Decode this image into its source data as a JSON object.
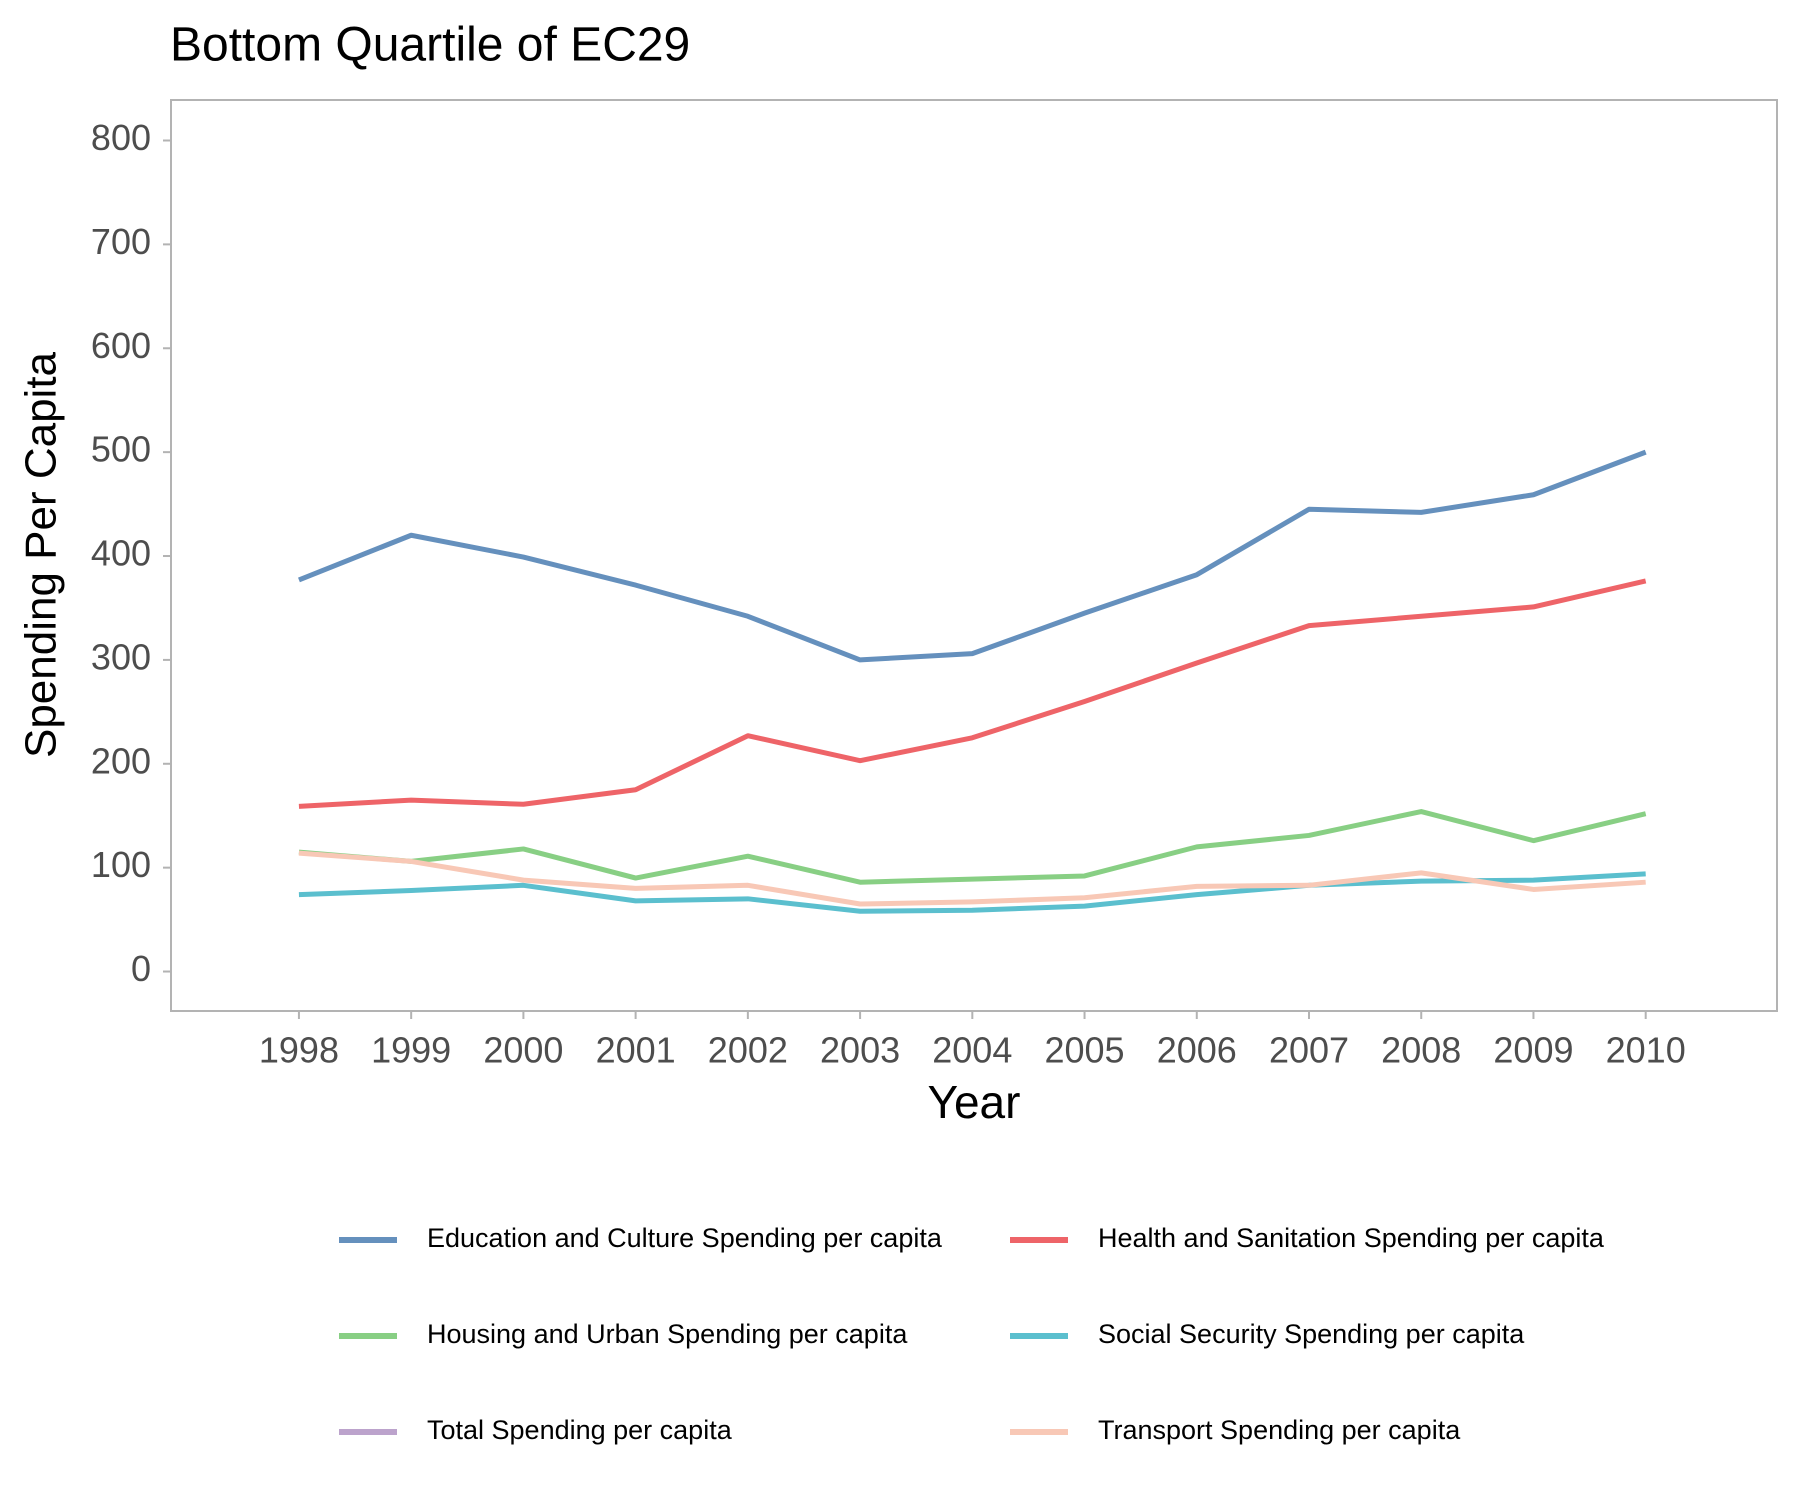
{
  "chart_data": {
    "type": "line",
    "title": "Bottom Quartile of EC29",
    "x_label": "Year",
    "y_label": "Spending Per Capita",
    "x": [
      1998,
      1999,
      2000,
      2001,
      2002,
      2003,
      2004,
      2005,
      2006,
      2007,
      2008,
      2009,
      2010
    ],
    "series": [
      {
        "name": "Education and Culture Spending per capita",
        "color": "#6590bd",
        "values": [
          377,
          420,
          399,
          372,
          342,
          300,
          306,
          345,
          382,
          445,
          442,
          459,
          500
        ]
      },
      {
        "name": "Health and Sanitation Spending per capita",
        "color": "#ee6468",
        "values": [
          159,
          165,
          161,
          175,
          227,
          203,
          225,
          260,
          297,
          333,
          342,
          351,
          376
        ]
      },
      {
        "name": "Housing and Urban Spending per capita",
        "color": "#88cf84",
        "values": [
          115,
          106,
          118,
          90,
          111,
          86,
          89,
          92,
          120,
          131,
          154,
          126,
          152
        ]
      },
      {
        "name": "Social Security Spending per capita",
        "color": "#5bbfce",
        "values": [
          74,
          78,
          83,
          68,
          70,
          58,
          59,
          63,
          74,
          83,
          87,
          88,
          94
        ]
      },
      {
        "name": "Total Spending per capita",
        "color": "#bca3cc",
        "values": [
          null,
          null,
          null,
          null,
          null,
          null,
          null,
          null,
          null,
          null,
          null,
          null,
          null
        ]
      },
      {
        "name": "Transport Spending per capita",
        "color": "#f8c8b6",
        "values": [
          114,
          106,
          88,
          80,
          83,
          65,
          67,
          71,
          82,
          83,
          95,
          79,
          86
        ]
      }
    ],
    "xlim": [
      1996.86,
      2011.17
    ],
    "xticks": [
      1998,
      1999,
      2000,
      2001,
      2002,
      2003,
      2004,
      2005,
      2006,
      2007,
      2008,
      2009,
      2010
    ],
    "ylim": [
      -38,
      839
    ],
    "yticks": [
      0,
      100,
      200,
      300,
      400,
      500,
      600,
      700,
      800
    ],
    "grid": false,
    "legend": "bottom"
  }
}
